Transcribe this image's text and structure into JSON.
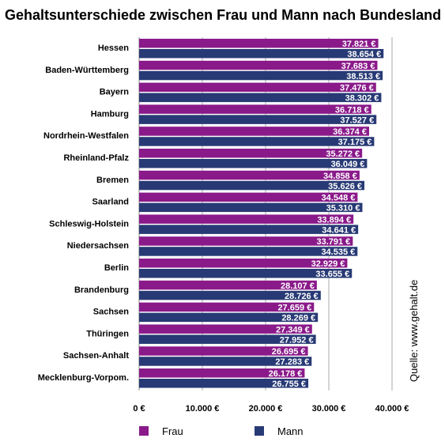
{
  "chart_data": {
    "type": "bar",
    "orientation": "horizontal",
    "title": "Gehaltsunterschiede zwischen Frau und Mann nach Bundesland",
    "categories": [
      "Hessen",
      "Baden-Württemberg",
      "Bayern",
      "Hamburg",
      "Nordrhein-Westfalen",
      "Rheinland-Pfalz",
      "Bremen",
      "Saarland",
      "Schleswig-Holstein",
      "Niedersachsen",
      "Berlin",
      "Brandenburg",
      "Sachsen",
      "Thüringen",
      "Sachsen-Anhalt",
      "Mecklenburg-Vorpom."
    ],
    "series": [
      {
        "name": "Frau",
        "color": "#8a1a8a",
        "values": [
          37821,
          37683,
          37476,
          36718,
          36374,
          35272,
          34858,
          34548,
          33894,
          33791,
          32929,
          28107,
          27659,
          27349,
          26695,
          26178
        ],
        "labels": [
          "37.821 €",
          "37.683 €",
          "37.476 €",
          "36.718 €",
          "36.374 €",
          "35.272 €",
          "34.858 €",
          "34.548 €",
          "33.894 €",
          "33.791 €",
          "32.929 €",
          "28.107 €",
          "27.659 €",
          "27.349 €",
          "26.695 €",
          "26.178 €"
        ]
      },
      {
        "name": "Mann",
        "color": "#283a75",
        "values": [
          38654,
          38513,
          38302,
          37527,
          37175,
          36049,
          35626,
          35310,
          34641,
          34535,
          33655,
          28726,
          28269,
          27952,
          27283,
          26755
        ],
        "labels": [
          "38.654 €",
          "38.513 €",
          "38.302 €",
          "37.527 €",
          "37.175 €",
          "36.049 €",
          "35.626 €",
          "35.310 €",
          "34.641 €",
          "34.535 €",
          "33.655 €",
          "28.726 €",
          "28.269 €",
          "27.952 €",
          "27.283 €",
          "26.755 €"
        ]
      }
    ],
    "xlim": [
      0,
      40000
    ],
    "xticks": [
      0,
      10000,
      20000,
      30000,
      40000
    ],
    "xtick_labels": [
      "0 €",
      "10.000 €",
      "20.000 €",
      "30.000 €",
      "40.000 €"
    ],
    "grid": true,
    "legend": "bottom",
    "source_note": "Quelle: www.gehalt.de"
  }
}
